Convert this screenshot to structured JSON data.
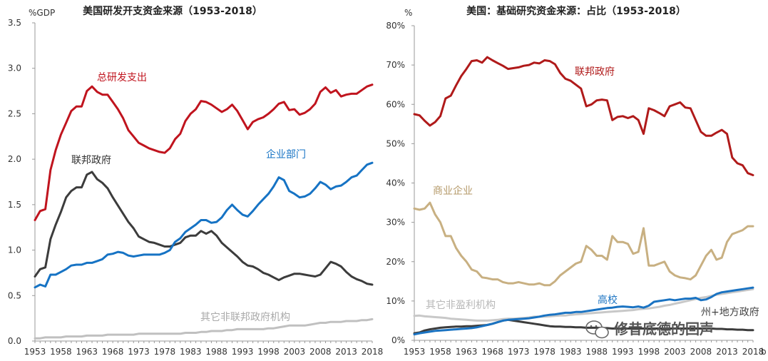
{
  "chart_data": [
    {
      "type": "line",
      "title": "美国研发开支资金来源（1953-2018）",
      "ylabel": "%GDP",
      "xlabel": "",
      "ylim": [
        0,
        3.5
      ],
      "yticks": [
        "0.0",
        "0.5",
        "1.0",
        "1.5",
        "2.0",
        "2.5",
        "3.0",
        "3.5"
      ],
      "xticks": [
        "1953",
        "1958",
        "1963",
        "1968",
        "1973",
        "1978",
        "1983",
        "1988",
        "1993",
        "1998",
        "2003",
        "2008",
        "2013",
        "2018"
      ],
      "x": [
        1953,
        1954,
        1955,
        1956,
        1957,
        1958,
        1959,
        1960,
        1961,
        1962,
        1963,
        1964,
        1965,
        1966,
        1967,
        1968,
        1969,
        1970,
        1971,
        1972,
        1973,
        1974,
        1975,
        1976,
        1977,
        1978,
        1979,
        1980,
        1981,
        1982,
        1983,
        1984,
        1985,
        1986,
        1987,
        1988,
        1989,
        1990,
        1991,
        1992,
        1993,
        1994,
        1995,
        1996,
        1997,
        1998,
        1999,
        2000,
        2001,
        2002,
        2003,
        2004,
        2005,
        2006,
        2007,
        2008,
        2009,
        2010,
        2011,
        2012,
        2013,
        2014,
        2015,
        2016,
        2017,
        2018
      ],
      "series": [
        {
          "name": "总研发支出",
          "color": "#c0141e",
          "values": [
            1.33,
            1.43,
            1.45,
            1.88,
            2.1,
            2.27,
            2.4,
            2.53,
            2.58,
            2.58,
            2.75,
            2.8,
            2.74,
            2.71,
            2.71,
            2.63,
            2.55,
            2.45,
            2.32,
            2.25,
            2.18,
            2.15,
            2.12,
            2.1,
            2.08,
            2.07,
            2.12,
            2.22,
            2.28,
            2.42,
            2.5,
            2.55,
            2.64,
            2.63,
            2.6,
            2.56,
            2.52,
            2.55,
            2.6,
            2.53,
            2.43,
            2.33,
            2.41,
            2.44,
            2.46,
            2.5,
            2.55,
            2.61,
            2.63,
            2.54,
            2.55,
            2.49,
            2.51,
            2.55,
            2.61,
            2.74,
            2.79,
            2.73,
            2.76,
            2.69,
            2.71,
            2.72,
            2.72,
            2.76,
            2.8,
            2.82
          ]
        },
        {
          "name": "企业部门",
          "color": "#1673c4",
          "values": [
            0.59,
            0.62,
            0.6,
            0.73,
            0.73,
            0.76,
            0.79,
            0.83,
            0.84,
            0.84,
            0.86,
            0.86,
            0.88,
            0.9,
            0.95,
            0.96,
            0.98,
            0.97,
            0.94,
            0.93,
            0.94,
            0.95,
            0.95,
            0.95,
            0.95,
            0.97,
            1.0,
            1.09,
            1.13,
            1.2,
            1.24,
            1.28,
            1.33,
            1.33,
            1.3,
            1.31,
            1.36,
            1.44,
            1.5,
            1.44,
            1.39,
            1.37,
            1.43,
            1.5,
            1.56,
            1.62,
            1.7,
            1.8,
            1.77,
            1.65,
            1.62,
            1.58,
            1.59,
            1.62,
            1.68,
            1.75,
            1.72,
            1.67,
            1.7,
            1.71,
            1.75,
            1.8,
            1.82,
            1.88,
            1.94,
            1.96
          ]
        },
        {
          "name": "联邦政府",
          "color": "#3c3c3c",
          "values": [
            0.71,
            0.79,
            0.81,
            1.12,
            1.28,
            1.42,
            1.58,
            1.65,
            1.69,
            1.69,
            1.83,
            1.86,
            1.78,
            1.74,
            1.68,
            1.58,
            1.49,
            1.4,
            1.31,
            1.24,
            1.15,
            1.12,
            1.09,
            1.08,
            1.06,
            1.04,
            1.04,
            1.06,
            1.08,
            1.14,
            1.16,
            1.16,
            1.21,
            1.18,
            1.21,
            1.16,
            1.08,
            1.03,
            0.98,
            0.93,
            0.87,
            0.83,
            0.82,
            0.79,
            0.75,
            0.73,
            0.7,
            0.67,
            0.7,
            0.72,
            0.74,
            0.74,
            0.73,
            0.72,
            0.71,
            0.73,
            0.8,
            0.87,
            0.85,
            0.82,
            0.76,
            0.71,
            0.68,
            0.66,
            0.63,
            0.62
          ]
        },
        {
          "name": "其它非联邦政府机构",
          "color": "#c0c0c0",
          "values": [
            0.03,
            0.03,
            0.04,
            0.04,
            0.04,
            0.04,
            0.05,
            0.05,
            0.05,
            0.05,
            0.06,
            0.06,
            0.06,
            0.06,
            0.07,
            0.07,
            0.07,
            0.07,
            0.07,
            0.07,
            0.08,
            0.08,
            0.08,
            0.08,
            0.08,
            0.08,
            0.08,
            0.08,
            0.08,
            0.09,
            0.09,
            0.09,
            0.1,
            0.1,
            0.11,
            0.11,
            0.11,
            0.12,
            0.12,
            0.13,
            0.13,
            0.13,
            0.13,
            0.13,
            0.13,
            0.14,
            0.14,
            0.15,
            0.16,
            0.17,
            0.17,
            0.17,
            0.17,
            0.18,
            0.19,
            0.2,
            0.2,
            0.21,
            0.21,
            0.21,
            0.22,
            0.22,
            0.22,
            0.23,
            0.23,
            0.24
          ]
        }
      ],
      "annotations": [
        {
          "text": "总研发支出",
          "series": 0
        },
        {
          "text": "企业部门",
          "series": 1
        },
        {
          "text": "联邦政府",
          "series": 2
        },
        {
          "text": "其它非联邦政府机构",
          "series": 3
        }
      ]
    },
    {
      "type": "line",
      "title": "美国：基础研究资金来源：占比（1953-2018）",
      "ylabel": "%",
      "xlabel": "",
      "ylim": [
        0,
        80
      ],
      "yticks": [
        "0%",
        "10%",
        "20%",
        "30%",
        "40%",
        "50%",
        "60%",
        "70%",
        "80%"
      ],
      "xticks": [
        "1953",
        "1958",
        "1963",
        "1968",
        "1973",
        "1978",
        "1983",
        "1988",
        "1993",
        "1998",
        "2003",
        "2008",
        "2013",
        "2018"
      ],
      "x_end_label": "b",
      "x": [
        1953,
        1954,
        1955,
        1956,
        1957,
        1958,
        1959,
        1960,
        1961,
        1962,
        1963,
        1964,
        1965,
        1966,
        1967,
        1968,
        1969,
        1970,
        1971,
        1972,
        1973,
        1974,
        1975,
        1976,
        1977,
        1978,
        1979,
        1980,
        1981,
        1982,
        1983,
        1984,
        1985,
        1986,
        1987,
        1988,
        1989,
        1990,
        1991,
        1992,
        1993,
        1994,
        1995,
        1996,
        1997,
        1998,
        1999,
        2000,
        2001,
        2002,
        2003,
        2004,
        2005,
        2006,
        2007,
        2008,
        2009,
        2010,
        2011,
        2012,
        2013,
        2014,
        2015,
        2016,
        2017,
        2018
      ],
      "series": [
        {
          "name": "联邦政府",
          "color": "#b01a1a",
          "values": [
            57.5,
            57.2,
            55.8,
            54.6,
            55.5,
            57.0,
            61.5,
            62.2,
            64.8,
            67.2,
            69.0,
            71.0,
            71.2,
            70.6,
            72.0,
            71.2,
            70.5,
            69.8,
            69.0,
            69.2,
            69.4,
            69.8,
            70.0,
            70.6,
            70.4,
            71.2,
            71.0,
            70.2,
            68.0,
            66.5,
            66.0,
            65.0,
            64.0,
            59.5,
            60.0,
            61.0,
            61.2,
            61.0,
            56.0,
            56.8,
            57.0,
            56.5,
            57.0,
            56.0,
            52.5,
            59.0,
            58.5,
            57.8,
            57.0,
            59.5,
            60.0,
            60.5,
            59.2,
            59.0,
            56.0,
            53.0,
            52.0,
            52.0,
            52.8,
            53.5,
            52.5,
            46.5,
            45.0,
            44.5,
            42.5,
            42.0
          ]
        },
        {
          "name": "商业企业",
          "color": "#c8b082",
          "values": [
            33.5,
            33.2,
            33.5,
            35.0,
            32.0,
            30.0,
            26.5,
            26.5,
            23.5,
            21.5,
            20.0,
            18.0,
            17.5,
            16.0,
            15.8,
            15.5,
            15.5,
            14.8,
            14.5,
            14.5,
            14.8,
            14.5,
            14.2,
            14.2,
            14.5,
            14.0,
            14.0,
            15.0,
            16.5,
            17.5,
            18.5,
            19.5,
            20.0,
            24.0,
            23.0,
            21.5,
            21.5,
            20.5,
            26.5,
            25.0,
            25.0,
            24.5,
            22.0,
            22.5,
            28.5,
            19.0,
            19.0,
            19.5,
            20.0,
            17.5,
            16.5,
            16.0,
            15.8,
            15.5,
            16.5,
            19.0,
            21.5,
            23.0,
            20.5,
            21.0,
            25.0,
            27.0,
            27.5,
            28.0,
            29.0,
            29.0
          ]
        },
        {
          "name": "高校",
          "color": "#1a73c2",
          "values": [
            1.5,
            1.8,
            2.0,
            2.2,
            2.4,
            2.5,
            2.6,
            2.7,
            2.8,
            2.9,
            3.0,
            3.1,
            3.3,
            3.6,
            3.9,
            4.2,
            4.6,
            5.0,
            5.2,
            5.3,
            5.4,
            5.5,
            5.6,
            5.8,
            6.0,
            6.3,
            6.5,
            6.6,
            6.8,
            7.0,
            7.0,
            7.2,
            7.2,
            7.4,
            7.6,
            7.8,
            8.0,
            8.2,
            8.3,
            8.5,
            8.6,
            8.5,
            8.4,
            8.6,
            8.3,
            8.8,
            9.8,
            10.0,
            10.2,
            10.4,
            10.2,
            10.4,
            10.6,
            10.6,
            10.8,
            10.2,
            10.4,
            11.0,
            11.8,
            12.2,
            12.4,
            12.6,
            12.8,
            13.0,
            13.2,
            13.4
          ]
        },
        {
          "name": "其它非盈利机构",
          "color": "#c8c8c8",
          "values": [
            6.2,
            6.3,
            6.1,
            6.0,
            5.9,
            5.8,
            5.7,
            5.5,
            5.4,
            5.3,
            5.2,
            5.1,
            5.0,
            5.0,
            5.0,
            5.1,
            5.2,
            5.4,
            5.5,
            5.5,
            5.6,
            5.7,
            5.8,
            6.0,
            6.0,
            6.0,
            6.1,
            6.2,
            6.3,
            6.3,
            6.5,
            6.6,
            6.7,
            6.8,
            6.9,
            7.0,
            7.1,
            7.2,
            7.3,
            7.4,
            7.5,
            7.6,
            7.7,
            7.9,
            8.0,
            8.1,
            8.3,
            8.5,
            8.8,
            9.0,
            9.3,
            9.6,
            9.9,
            10.2,
            10.5,
            10.8,
            11.0,
            11.3,
            11.6,
            11.8,
            12.0,
            12.2,
            12.4,
            12.6,
            12.8,
            13.0
          ]
        },
        {
          "name": "州+地方政府",
          "color": "#3c3c3c",
          "values": [
            1.8,
            2.0,
            2.5,
            2.8,
            3.0,
            3.2,
            3.3,
            3.4,
            3.5,
            3.5,
            3.6,
            3.6,
            3.7,
            3.8,
            3.9,
            4.2,
            4.6,
            5.0,
            5.2,
            5.0,
            4.8,
            4.6,
            4.4,
            4.2,
            4.0,
            3.8,
            3.6,
            3.5,
            3.5,
            3.4,
            3.4,
            3.3,
            3.3,
            3.2,
            3.2,
            3.2,
            3.1,
            3.1,
            3.0,
            3.0,
            3.0,
            3.0,
            3.0,
            3.0,
            3.0,
            3.0,
            3.0,
            3.0,
            3.0,
            3.0,
            3.0,
            3.0,
            3.0,
            3.0,
            3.0,
            3.0,
            3.0,
            3.0,
            2.9,
            2.9,
            2.8,
            2.8,
            2.7,
            2.7,
            2.6,
            2.6
          ]
        }
      ],
      "annotations": [
        {
          "text": "联邦政府",
          "series": 0
        },
        {
          "text": "商业企业",
          "series": 1
        },
        {
          "text": "高校",
          "series": 2
        },
        {
          "text": "其它非盈利机构",
          "series": 3
        },
        {
          "text": "州+地方政府",
          "series": 4
        }
      ]
    }
  ],
  "watermark": {
    "text": "修昔底德的回声"
  }
}
